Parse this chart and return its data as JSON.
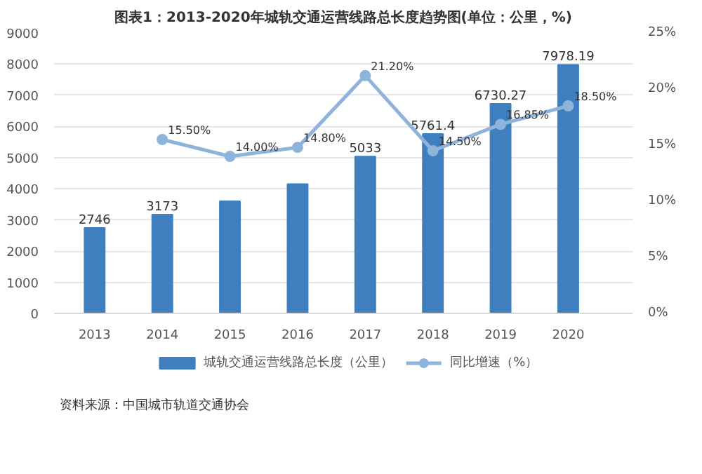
{
  "chart_data": {
    "type": "bar",
    "title": "图表1：2013-2020年城轨交通运营线路总长度趋势图(单位：公里，%)",
    "categories": [
      "2013",
      "2014",
      "2015",
      "2016",
      "2017",
      "2018",
      "2019",
      "2020"
    ],
    "series": [
      {
        "name": "城轨交通运营线路总长度（公里）",
        "color": "#3f7fbf",
        "values": [
          2746,
          3173,
          3600,
          4150,
          5033,
          5761.4,
          6730.27,
          7978.19
        ],
        "value_labels": [
          "2746",
          "3173",
          null,
          null,
          "5033",
          "5761.4",
          "6730.27",
          "7978.19"
        ]
      },
      {
        "name": "同比增速（%）",
        "type": "line",
        "axis": "y2",
        "color": "#8fb4dc",
        "marker": "circle",
        "values": [
          null,
          15.5,
          14.0,
          14.8,
          21.2,
          14.5,
          16.85,
          18.5
        ],
        "value_labels": [
          null,
          "15.50%",
          "14.00%",
          "14.80%",
          "21.20%",
          "14.50%",
          "16.85%",
          "18.50%"
        ]
      }
    ],
    "ylim": [
      0,
      9000
    ],
    "yticks": [
      0,
      1000,
      2000,
      3000,
      4000,
      5000,
      6000,
      7000,
      8000,
      9000
    ],
    "y2lim": [
      0,
      25
    ],
    "y2ticks": [
      {
        "value": 0,
        "label": "0%"
      },
      {
        "value": 5,
        "label": "5%"
      },
      {
        "value": 10,
        "label": "10%"
      },
      {
        "value": 15,
        "label": "15%"
      },
      {
        "value": 20,
        "label": "20%"
      },
      {
        "value": 25,
        "label": "25%"
      }
    ],
    "grid": "y",
    "legend": "bottom",
    "annotations": [
      "资料来源：中国城市轨道交通协会"
    ]
  }
}
